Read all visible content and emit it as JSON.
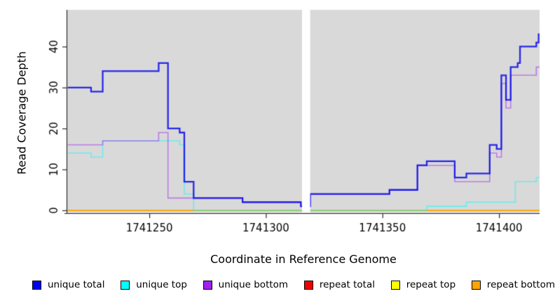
{
  "chart_data": {
    "type": "line",
    "style": "step-after",
    "title": "",
    "xlabel": "Coordinate in Reference Genome",
    "ylabel": "Read Coverage Depth",
    "xlim": [
      1741214.8,
      1741417.4
    ],
    "ylim": [
      -0.7,
      48.3
    ],
    "x_ticks": [
      1741250,
      1741300,
      1741350,
      1741400
    ],
    "y_ticks": [
      0,
      10,
      20,
      30,
      40
    ],
    "grid": false,
    "plot_background": "#d9d9d9",
    "gap_region": {
      "from": 1741315.5,
      "to": 1741319.0,
      "color": "#ffffff"
    },
    "series": [
      {
        "name": "repeat total",
        "color": "#EE0000",
        "alpha": 0.55,
        "width": 1.5,
        "points": [
          [
            1741215,
            0
          ]
        ]
      },
      {
        "name": "repeat top",
        "color": "#FFFF00",
        "alpha": 0.55,
        "width": 1.5,
        "points": [
          [
            1741215,
            0
          ]
        ]
      },
      {
        "name": "repeat bottom",
        "color": "#FFA500",
        "alpha": 0.85,
        "width": 1.6,
        "points": [
          [
            1741215,
            0
          ]
        ]
      },
      {
        "name": "unique top",
        "color": "#00FFFF",
        "alpha": 0.5,
        "width": 1.6,
        "points": [
          [
            1741215,
            14
          ],
          [
            1741225,
            13
          ],
          [
            1741230,
            17
          ],
          [
            1741263,
            16
          ],
          [
            1741265,
            4
          ],
          [
            1741269,
            0
          ],
          [
            1741369,
            1
          ],
          [
            1741386,
            2
          ],
          [
            1741407,
            7
          ],
          [
            1741416,
            8
          ]
        ]
      },
      {
        "name": "unique bottom",
        "color": "#A020F0",
        "alpha": 0.5,
        "width": 1.6,
        "points": [
          [
            1741215,
            16
          ],
          [
            1741230,
            17
          ],
          [
            1741254,
            19
          ],
          [
            1741258,
            3
          ],
          [
            1741290,
            2
          ],
          [
            1741315,
            1
          ],
          [
            1741319,
            4
          ],
          [
            1741353,
            5
          ],
          [
            1741365,
            11
          ],
          [
            1741381,
            7
          ],
          [
            1741396,
            14
          ],
          [
            1741399,
            13
          ],
          [
            1741401,
            31
          ],
          [
            1741403,
            25
          ],
          [
            1741405,
            33
          ],
          [
            1741416,
            35
          ]
        ]
      },
      {
        "name": "unique total",
        "color": "#0000EE",
        "alpha": 0.82,
        "width": 2.3,
        "points": [
          [
            1741215,
            30
          ],
          [
            1741225,
            29
          ],
          [
            1741230,
            34
          ],
          [
            1741254,
            36
          ],
          [
            1741258,
            20
          ],
          [
            1741263,
            19
          ],
          [
            1741265,
            7
          ],
          [
            1741269,
            3
          ],
          [
            1741290,
            2
          ],
          [
            1741315,
            1
          ],
          [
            1741319,
            4
          ],
          [
            1741353,
            5
          ],
          [
            1741365,
            11
          ],
          [
            1741369,
            12
          ],
          [
            1741381,
            8
          ],
          [
            1741386,
            9
          ],
          [
            1741396,
            16
          ],
          [
            1741399,
            15
          ],
          [
            1741401,
            33
          ],
          [
            1741403,
            27
          ],
          [
            1741405,
            35
          ],
          [
            1741408,
            36
          ],
          [
            1741409,
            40
          ],
          [
            1741416,
            41
          ],
          [
            1741417,
            43
          ]
        ]
      }
    ]
  },
  "axis": {
    "x_title": "Coordinate in Reference Genome",
    "y_title": "Read Coverage Depth"
  },
  "legend": {
    "items": [
      {
        "label": "unique total",
        "color": "#0000EE"
      },
      {
        "label": "unique top",
        "color": "#00FFFF"
      },
      {
        "label": "unique bottom",
        "color": "#A020F0"
      },
      {
        "label": "repeat total",
        "color": "#EE0000"
      },
      {
        "label": "repeat top",
        "color": "#FFFF00"
      },
      {
        "label": "repeat bottom",
        "color": "#FFA500"
      }
    ]
  },
  "colors": {
    "plot_bg": "#d9d9d9",
    "axis_line": "#2a2a2a",
    "tick_text": "#000000"
  }
}
